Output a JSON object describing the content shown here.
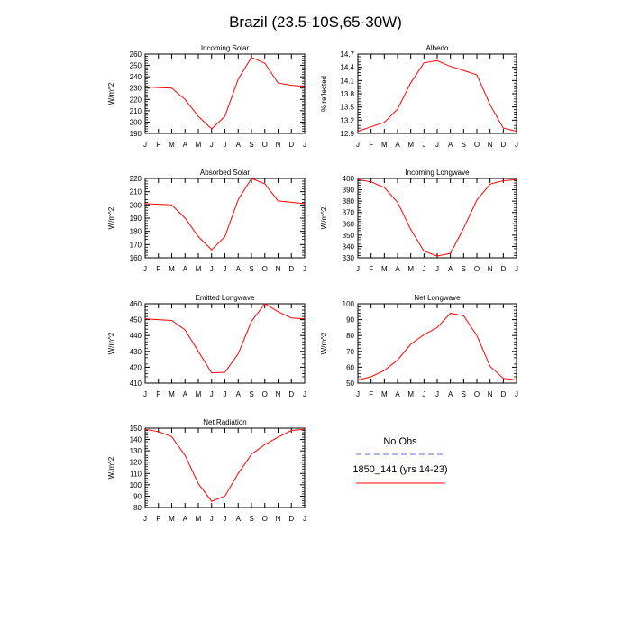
{
  "title": "Brazil (23.5-10S,65-30W)",
  "colors": {
    "model_line": "#ff0000",
    "obs_line": "#6666ff",
    "axis": "#000000"
  },
  "legend": {
    "obs_label": "No Obs",
    "model_label": "1850_141 (yrs 14-23)"
  },
  "chart_data": [
    {
      "type": "line",
      "title": "Incoming Solar",
      "ylabel": "W/m^2",
      "categories": [
        "J",
        "F",
        "M",
        "A",
        "M",
        "J",
        "J",
        "A",
        "S",
        "O",
        "N",
        "D",
        "J"
      ],
      "ylim": [
        190,
        260
      ],
      "yticks": [
        190,
        200,
        210,
        220,
        230,
        240,
        250,
        260
      ],
      "series": [
        {
          "name": "1850_141 (yrs 14-23)",
          "values": [
            231,
            230.5,
            230,
            220,
            205,
            194,
            205,
            238,
            257,
            252,
            234.5,
            232.5,
            231.5
          ]
        }
      ]
    },
    {
      "type": "line",
      "title": "Albedo",
      "ylabel": "% reflected",
      "categories": [
        "J",
        "F",
        "M",
        "A",
        "M",
        "J",
        "J",
        "A",
        "S",
        "O",
        "N",
        "D",
        "J"
      ],
      "ylim": [
        12.9,
        14.7
      ],
      "yticks": [
        12.9,
        13.2,
        13.5,
        13.8,
        14.1,
        14.4,
        14.7
      ],
      "series": [
        {
          "name": "1850_141 (yrs 14-23)",
          "values": [
            12.95,
            13.05,
            13.15,
            13.45,
            14.05,
            14.5,
            14.55,
            14.42,
            14.33,
            14.23,
            13.55,
            13.02,
            12.95
          ]
        }
      ]
    },
    {
      "type": "line",
      "title": "Absorbed Solar",
      "ylabel": "W/m^2",
      "categories": [
        "J",
        "F",
        "M",
        "A",
        "M",
        "J",
        "J",
        "A",
        "S",
        "O",
        "N",
        "D",
        "J"
      ],
      "ylim": [
        160,
        220
      ],
      "yticks": [
        160,
        170,
        180,
        190,
        200,
        210,
        220
      ],
      "series": [
        {
          "name": "1850_141 (yrs 14-23)",
          "values": [
            201,
            200.5,
            200,
            190,
            176,
            166,
            176,
            204,
            220,
            216,
            203,
            202,
            201
          ]
        }
      ]
    },
    {
      "type": "line",
      "title": "Incoming Longwave",
      "ylabel": "W/m^2",
      "categories": [
        "J",
        "F",
        "M",
        "A",
        "M",
        "J",
        "J",
        "A",
        "S",
        "O",
        "N",
        "D",
        "J"
      ],
      "ylim": [
        330,
        400
      ],
      "yticks": [
        330,
        340,
        350,
        360,
        370,
        380,
        390,
        400
      ],
      "series": [
        {
          "name": "1850_141 (yrs 14-23)",
          "values": [
            399,
            397,
            392,
            379,
            355,
            336,
            331.5,
            334,
            356,
            381,
            395,
            398,
            399
          ]
        }
      ]
    },
    {
      "type": "line",
      "title": "Emitted Longwave",
      "ylabel": "W/m^2",
      "categories": [
        "J",
        "F",
        "M",
        "A",
        "M",
        "J",
        "J",
        "A",
        "S",
        "O",
        "N",
        "D",
        "J"
      ],
      "ylim": [
        410,
        460
      ],
      "yticks": [
        410,
        420,
        430,
        440,
        450,
        460
      ],
      "series": [
        {
          "name": "1850_141 (yrs 14-23)",
          "values": [
            450.5,
            450,
            449.5,
            443.5,
            430,
            416.5,
            416.8,
            428.5,
            449,
            460,
            455,
            451,
            450.5
          ]
        }
      ]
    },
    {
      "type": "line",
      "title": "Net Longwave",
      "ylabel": "W/m^2",
      "categories": [
        "J",
        "F",
        "M",
        "A",
        "M",
        "J",
        "J",
        "A",
        "S",
        "O",
        "N",
        "D",
        "J"
      ],
      "ylim": [
        50,
        100
      ],
      "yticks": [
        50,
        60,
        70,
        80,
        90,
        100
      ],
      "series": [
        {
          "name": "1850_141 (yrs 14-23)",
          "values": [
            52,
            54,
            58,
            64.5,
            74.5,
            80.5,
            85,
            94,
            92.5,
            80,
            60.5,
            53,
            52
          ]
        }
      ]
    },
    {
      "type": "line",
      "title": "Net Radiation",
      "ylabel": "W/m^2",
      "categories": [
        "J",
        "F",
        "M",
        "A",
        "M",
        "J",
        "J",
        "A",
        "S",
        "O",
        "N",
        "D",
        "J"
      ],
      "ylim": [
        80,
        150
      ],
      "yticks": [
        80,
        90,
        100,
        110,
        120,
        130,
        140,
        150
      ],
      "series": [
        {
          "name": "1850_141 (yrs 14-23)",
          "values": [
            149,
            147,
            142.5,
            126,
            101,
            85.5,
            90,
            110,
            127,
            135.5,
            142,
            148,
            149
          ]
        }
      ]
    }
  ]
}
